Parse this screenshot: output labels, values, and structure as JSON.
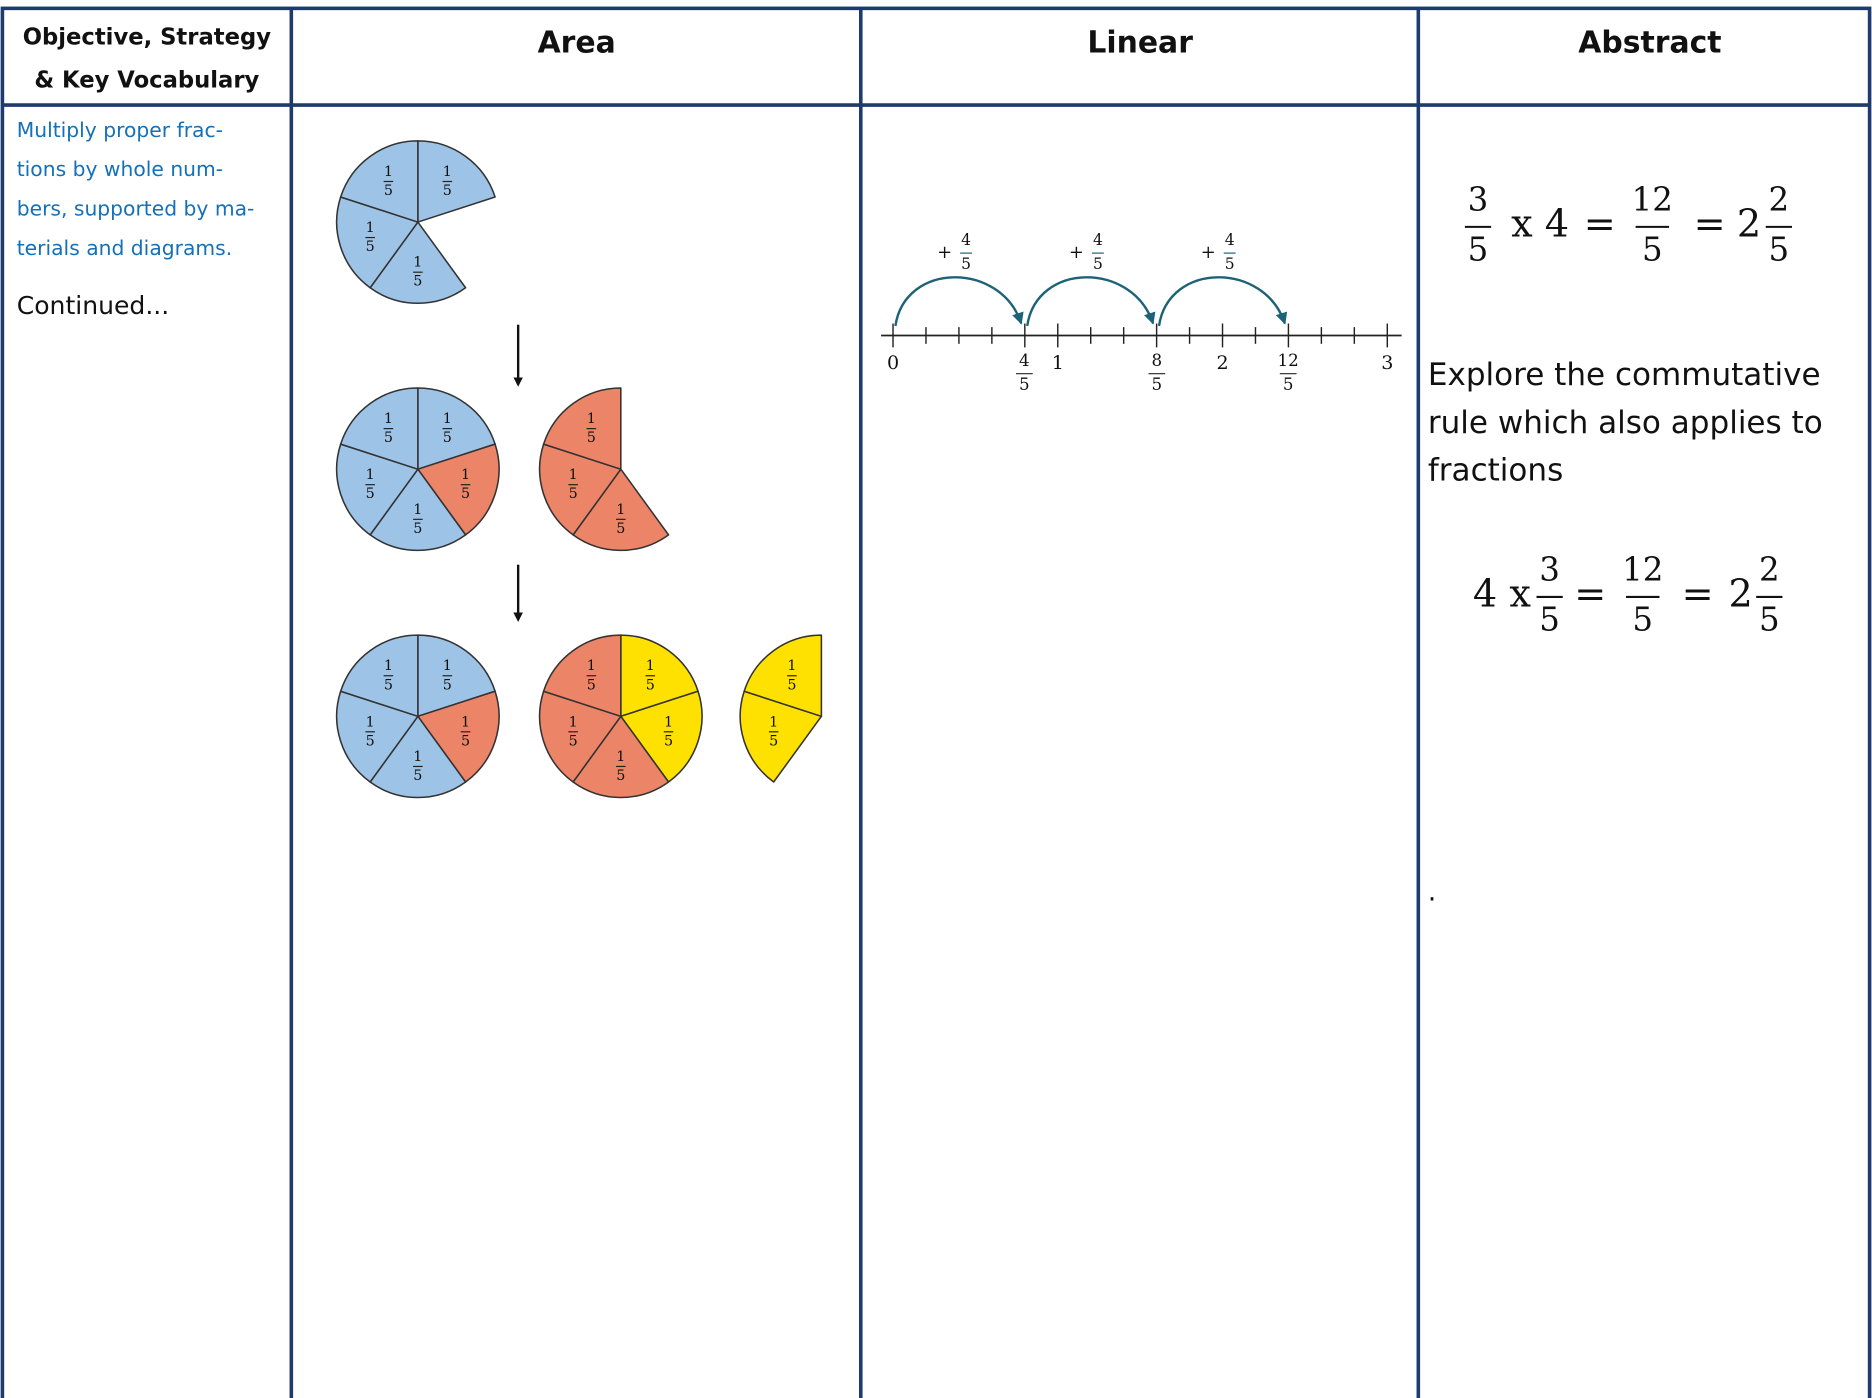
{
  "table": {
    "headers": [
      {
        "lines": [
          "Objective, Strategy",
          "& Key Vocabulary"
        ]
      },
      {
        "lines": [
          "Area"
        ]
      },
      {
        "lines": [
          "Linear"
        ]
      },
      {
        "lines": [
          "Abstract"
        ]
      }
    ],
    "objective": {
      "lines": [
        "Multiply proper frac-",
        "tions by whole num-",
        "bers, supported by ma-",
        "terials and diagrams."
      ],
      "continued": "Continued..."
    },
    "area": {
      "piece": {
        "numerator": "1",
        "denominator": "5"
      }
    },
    "linear": {
      "jumps": [
        {
          "sign": "+",
          "numerator": "4",
          "denominator": "5"
        },
        {
          "sign": "+",
          "numerator": "4",
          "denominator": "5"
        },
        {
          "sign": "+",
          "numerator": "4",
          "denominator": "5"
        }
      ],
      "labels": [
        {
          "text": "0"
        },
        {
          "numerator": "4",
          "denominator": "5"
        },
        {
          "text": "1"
        },
        {
          "numerator": "8",
          "denominator": "5"
        },
        {
          "text": "2"
        },
        {
          "numerator": "12",
          "denominator": "5"
        },
        {
          "text": "3"
        }
      ]
    },
    "abstract": {
      "equation1": [
        {
          "numerator": "3",
          "denominator": "5"
        },
        {
          "text": "x 4"
        },
        {
          "text": "="
        },
        {
          "numerator": "12",
          "denominator": "5"
        },
        {
          "text": "="
        },
        {
          "text": "2"
        },
        {
          "numerator": "2",
          "denominator": "5"
        }
      ],
      "text_lines": [
        "Explore the commutative",
        "rule which also applies to",
        "fractions"
      ],
      "equation2": [
        {
          "text": "4 x"
        },
        {
          "numerator": "3",
          "denominator": "5"
        },
        {
          "text": "="
        },
        {
          "numerator": "12",
          "denominator": "5"
        },
        {
          "text": "="
        },
        {
          "text": "2"
        },
        {
          "numerator": "2",
          "denominator": "5"
        }
      ],
      "dot": "."
    }
  }
}
